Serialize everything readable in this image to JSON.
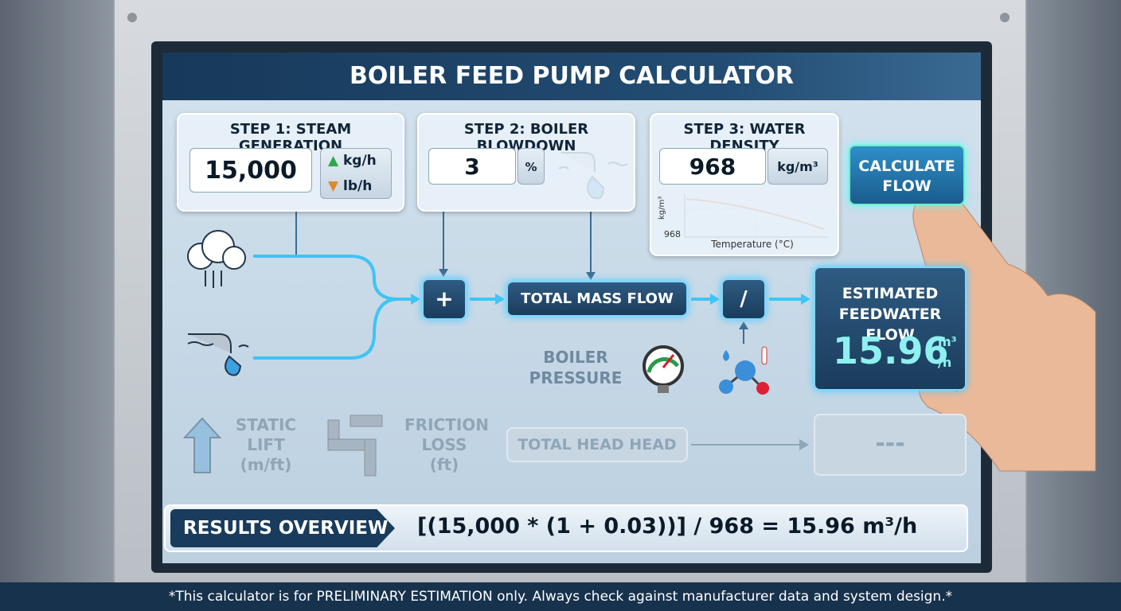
{
  "header": {
    "title": "BOILER FEED PUMP CALCULATOR"
  },
  "steps": [
    {
      "label": "STEP 1: STEAM GENERATION",
      "value": "15,000",
      "units": [
        "kg/h",
        "lb/h"
      ]
    },
    {
      "label": "STEP 2: BOILER BLOWDOWN",
      "value": "3",
      "units": [
        "%"
      ]
    },
    {
      "label": "STEP 3: WATER DENSITY",
      "value": "968",
      "units": [
        "kg/m³"
      ]
    }
  ],
  "density_chart": {
    "y_label": "kg/m³",
    "y_tick": "968",
    "x_label": "Temperature (°C)"
  },
  "calculate_button": "CALCULATE FLOW",
  "flow": {
    "add": "+",
    "total_mass_flow": "TOTAL MASS FLOW",
    "divide": "/",
    "boiler_pressure": "BOILER PRESSURE"
  },
  "result": {
    "label": "ESTIMATED FEEDWATER FLOW",
    "value": "15.96",
    "unit_top": "m³",
    "unit_bottom": "/h"
  },
  "head": {
    "static_lift": "STATIC LIFT (m/ft)",
    "friction_loss": "FRICTION LOSS (ft)",
    "total_head": "TOTAL HEAD HEAD",
    "head_result": "---"
  },
  "overview": {
    "label": "RESULTS OVERVIEW",
    "formula": "[(15,000 * (1 + 0.03))] / 968 = 15.96 m³/h"
  },
  "footer": {
    "note": "*This calculator is for PRELIMINARY ESTIMATION only. Always check against manufacturer data and system design.*"
  }
}
